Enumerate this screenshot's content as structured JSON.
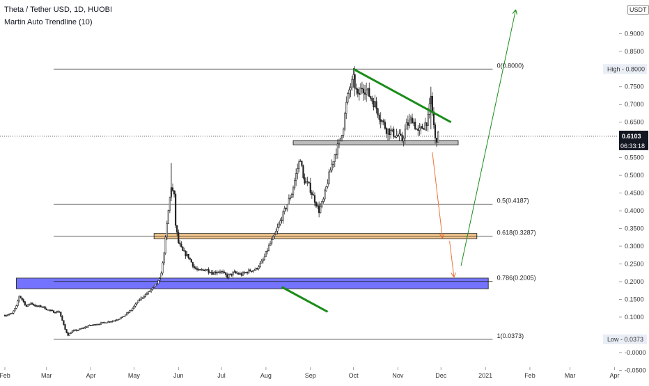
{
  "header": {
    "symbol_line": "Theta / Tether USD, 1D, HUOBI",
    "indicator_line": "Martin Auto Trendline (10)",
    "currency": "USDT"
  },
  "price_axis": {
    "ticks": [
      {
        "value": 0.9,
        "label": "0.9000"
      },
      {
        "value": 0.85,
        "label": "0.8500"
      },
      {
        "value": 0.75,
        "label": "0.7500"
      },
      {
        "value": 0.7,
        "label": "0.7000"
      },
      {
        "value": 0.65,
        "label": "0.6500"
      },
      {
        "value": 0.55,
        "label": "0.5500"
      },
      {
        "value": 0.5,
        "label": "0.5000"
      },
      {
        "value": 0.45,
        "label": "0.4500"
      },
      {
        "value": 0.4,
        "label": "0.4000"
      },
      {
        "value": 0.35,
        "label": "0.3500"
      },
      {
        "value": 0.3,
        "label": "0.3000"
      },
      {
        "value": 0.25,
        "label": "0.2500"
      },
      {
        "value": 0.2,
        "label": "0.2000"
      },
      {
        "value": 0.15,
        "label": "0.1500"
      },
      {
        "value": 0.1,
        "label": "0.1000"
      },
      {
        "value": 0.0,
        "label": "-0.0000"
      },
      {
        "value": -0.05,
        "label": "-0.0500"
      }
    ],
    "tags": {
      "high": {
        "label": "High - 0.8000",
        "value": 0.8
      },
      "low": {
        "label": "Low - 0.0373",
        "value": 0.0373
      },
      "last": {
        "label": "0.6103",
        "value": 0.6103
      },
      "countdown": "06:33:18"
    }
  },
  "time_axis": {
    "labels": [
      {
        "label": "Feb",
        "day": 0
      },
      {
        "label": "Mar",
        "day": 29
      },
      {
        "label": "Apr",
        "day": 60
      },
      {
        "label": "May",
        "day": 90
      },
      {
        "label": "Jun",
        "day": 121
      },
      {
        "label": "Jul",
        "day": 151
      },
      {
        "label": "Aug",
        "day": 182
      },
      {
        "label": "Sep",
        "day": 213
      },
      {
        "label": "Oct",
        "day": 243
      },
      {
        "label": "Nov",
        "day": 274
      },
      {
        "label": "Dec",
        "day": 304
      },
      {
        "label": "2021",
        "day": 335
      },
      {
        "label": "Feb",
        "day": 366
      },
      {
        "label": "Mar",
        "day": 394
      },
      {
        "label": "Apr",
        "day": 425
      }
    ]
  },
  "fib_levels": [
    {
      "ratio": 0,
      "value": 0.8,
      "label": "0(0.8000)"
    },
    {
      "ratio": 0.5,
      "value": 0.4187,
      "label": "0.5(0.4187)"
    },
    {
      "ratio": 0.618,
      "value": 0.3287,
      "label": "0.618(0.3287)"
    },
    {
      "ratio": 0.786,
      "value": 0.2005,
      "label": "0.786(0.2005)"
    },
    {
      "ratio": 1,
      "value": 0.0373,
      "label": "1(0.0373)"
    }
  ],
  "zones": [
    {
      "name": "blue-support",
      "from_day": 8,
      "to_day": 337,
      "low": 0.18,
      "high": 0.21,
      "color": "#5b5bff"
    },
    {
      "name": "orange-fib-618",
      "from_day": 104,
      "to_day": 329,
      "low": 0.321,
      "high": 0.336,
      "color": "#f5c07a"
    },
    {
      "name": "grey-support",
      "from_day": 201,
      "to_day": 316,
      "low": 0.586,
      "high": 0.598,
      "color": "#b0b0b0"
    }
  ],
  "drawings": {
    "trendline_top": {
      "from": [
        243,
        0.8
      ],
      "to": [
        311,
        0.65
      ],
      "color": "#1a8c1a"
    },
    "trendline_bottom": {
      "from": [
        193,
        0.185
      ],
      "to": [
        225,
        0.115
      ],
      "color": "#1a8c1a"
    },
    "projection_down_1": {
      "from": [
        298,
        0.565
      ],
      "to": [
        305,
        0.325
      ],
      "color": "#e8743b"
    },
    "projection_down_2": {
      "from": [
        310,
        0.315
      ],
      "to": [
        313,
        0.215
      ],
      "color": "#e8743b"
    },
    "projection_up": {
      "from": [
        318,
        0.245
      ],
      "to": [
        356,
        0.965
      ],
      "color": "#1a8c1a"
    }
  },
  "chart_data": {
    "type": "candlestick",
    "title": "Theta / Tether USD, 1D, HUOBI",
    "ylim": [
      -0.065,
      0.985
    ],
    "x_unit": "days since Feb 1",
    "colors": {
      "up": "#222222",
      "down": "#222222",
      "grid": "none"
    },
    "path_close": [
      [
        0,
        0.105
      ],
      [
        5,
        0.11
      ],
      [
        8,
        0.13
      ],
      [
        10,
        0.16
      ],
      [
        12,
        0.15
      ],
      [
        15,
        0.13
      ],
      [
        18,
        0.14
      ],
      [
        22,
        0.13
      ],
      [
        26,
        0.13
      ],
      [
        30,
        0.12
      ],
      [
        34,
        0.115
      ],
      [
        38,
        0.115
      ],
      [
        42,
        0.065
      ],
      [
        44,
        0.05
      ],
      [
        47,
        0.06
      ],
      [
        52,
        0.065
      ],
      [
        58,
        0.075
      ],
      [
        64,
        0.08
      ],
      [
        70,
        0.085
      ],
      [
        76,
        0.09
      ],
      [
        82,
        0.1
      ],
      [
        88,
        0.12
      ],
      [
        94,
        0.15
      ],
      [
        100,
        0.17
      ],
      [
        104,
        0.185
      ],
      [
        108,
        0.205
      ],
      [
        110,
        0.25
      ],
      [
        112,
        0.32
      ],
      [
        114,
        0.4
      ],
      [
        116,
        0.47
      ],
      [
        118,
        0.44
      ],
      [
        119,
        0.36
      ],
      [
        121,
        0.31
      ],
      [
        124,
        0.285
      ],
      [
        128,
        0.27
      ],
      [
        132,
        0.24
      ],
      [
        135,
        0.23
      ],
      [
        140,
        0.235
      ],
      [
        145,
        0.225
      ],
      [
        150,
        0.23
      ],
      [
        155,
        0.215
      ],
      [
        160,
        0.225
      ],
      [
        165,
        0.22
      ],
      [
        170,
        0.23
      ],
      [
        175,
        0.235
      ],
      [
        180,
        0.26
      ],
      [
        184,
        0.3
      ],
      [
        188,
        0.33
      ],
      [
        192,
        0.37
      ],
      [
        196,
        0.41
      ],
      [
        200,
        0.45
      ],
      [
        204,
        0.52
      ],
      [
        206,
        0.55
      ],
      [
        208,
        0.49
      ],
      [
        212,
        0.47
      ],
      [
        216,
        0.43
      ],
      [
        219,
        0.4
      ],
      [
        222,
        0.43
      ],
      [
        226,
        0.5
      ],
      [
        230,
        0.56
      ],
      [
        233,
        0.59
      ],
      [
        236,
        0.64
      ],
      [
        238,
        0.7
      ],
      [
        240,
        0.74
      ],
      [
        243,
        0.77
      ],
      [
        246,
        0.72
      ],
      [
        249,
        0.75
      ],
      [
        252,
        0.74
      ],
      [
        255,
        0.72
      ],
      [
        258,
        0.7
      ],
      [
        262,
        0.66
      ],
      [
        266,
        0.63
      ],
      [
        270,
        0.62
      ],
      [
        274,
        0.61
      ],
      [
        277,
        0.6
      ],
      [
        280,
        0.64
      ],
      [
        284,
        0.66
      ],
      [
        288,
        0.62
      ],
      [
        292,
        0.64
      ],
      [
        295,
        0.66
      ],
      [
        297,
        0.72
      ],
      [
        298,
        0.68
      ],
      [
        300,
        0.6
      ],
      [
        302,
        0.6103
      ]
    ]
  }
}
